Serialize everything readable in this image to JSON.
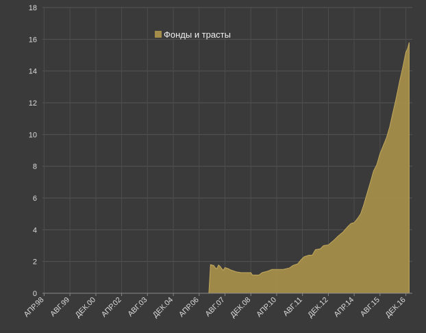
{
  "chart_data": {
    "type": "area",
    "ylim": [
      0,
      18
    ],
    "yticks": [
      0,
      2,
      4,
      6,
      8,
      10,
      12,
      14,
      16,
      18
    ],
    "xrange": [
      "1998-03-01",
      "2017-04-01"
    ],
    "xticks": [
      {
        "date": "1998-04-01",
        "label": "АПР.98"
      },
      {
        "date": "1999-08-01",
        "label": "АВГ.99"
      },
      {
        "date": "2000-12-01",
        "label": "ДЕК.00"
      },
      {
        "date": "2002-04-01",
        "label": "АПР.02"
      },
      {
        "date": "2003-08-01",
        "label": "АВГ.03"
      },
      {
        "date": "2004-12-01",
        "label": "ДЕК.04"
      },
      {
        "date": "2006-04-01",
        "label": "АПР.06"
      },
      {
        "date": "2007-08-01",
        "label": "АВГ.07"
      },
      {
        "date": "2008-12-01",
        "label": "ДЕК.08"
      },
      {
        "date": "2010-04-01",
        "label": "АПР.10"
      },
      {
        "date": "2011-08-01",
        "label": "АВГ.11"
      },
      {
        "date": "2012-12-01",
        "label": "ДЕК.12"
      },
      {
        "date": "2014-04-01",
        "label": "АПР.14"
      },
      {
        "date": "2015-08-01",
        "label": "АВГ.15"
      },
      {
        "date": "2016-12-01",
        "label": "ДЕК.16"
      }
    ],
    "grid": true,
    "legend_position": "top-left",
    "series": [
      {
        "name": "Фонды и трасты",
        "color": "#a48d4a",
        "points": [
          [
            "1998-03-01",
            0
          ],
          [
            "2006-10-01",
            0
          ],
          [
            "2006-11-01",
            1.8
          ],
          [
            "2007-01-01",
            1.75
          ],
          [
            "2007-02-01",
            1.6
          ],
          [
            "2007-03-01",
            1.55
          ],
          [
            "2007-04-01",
            1.78
          ],
          [
            "2007-05-01",
            1.7
          ],
          [
            "2007-06-01",
            1.55
          ],
          [
            "2007-07-01",
            1.45
          ],
          [
            "2007-08-01",
            1.62
          ],
          [
            "2007-10-01",
            1.55
          ],
          [
            "2007-12-01",
            1.45
          ],
          [
            "2008-03-01",
            1.35
          ],
          [
            "2008-06-01",
            1.3
          ],
          [
            "2008-09-01",
            1.3
          ],
          [
            "2008-12-01",
            1.3
          ],
          [
            "2009-01-01",
            1.15
          ],
          [
            "2009-05-01",
            1.15
          ],
          [
            "2009-07-01",
            1.3
          ],
          [
            "2009-10-01",
            1.38
          ],
          [
            "2010-01-01",
            1.5
          ],
          [
            "2010-04-01",
            1.5
          ],
          [
            "2010-08-01",
            1.5
          ],
          [
            "2010-12-01",
            1.6
          ],
          [
            "2011-02-01",
            1.75
          ],
          [
            "2011-05-01",
            1.85
          ],
          [
            "2011-07-01",
            2.1
          ],
          [
            "2011-09-01",
            2.3
          ],
          [
            "2011-12-01",
            2.4
          ],
          [
            "2012-02-01",
            2.4
          ],
          [
            "2012-04-01",
            2.75
          ],
          [
            "2012-07-01",
            2.8
          ],
          [
            "2012-09-01",
            3.0
          ],
          [
            "2012-12-01",
            3.05
          ],
          [
            "2013-03-01",
            3.3
          ],
          [
            "2013-06-01",
            3.6
          ],
          [
            "2013-09-01",
            3.85
          ],
          [
            "2013-12-01",
            4.2
          ],
          [
            "2014-02-01",
            4.4
          ],
          [
            "2014-04-01",
            4.45
          ],
          [
            "2014-06-01",
            4.7
          ],
          [
            "2014-08-01",
            5.0
          ],
          [
            "2014-10-01",
            5.6
          ],
          [
            "2014-12-01",
            6.3
          ],
          [
            "2015-02-01",
            7.0
          ],
          [
            "2015-04-01",
            7.7
          ],
          [
            "2015-06-01",
            8.1
          ],
          [
            "2015-08-01",
            8.8
          ],
          [
            "2015-10-01",
            9.3
          ],
          [
            "2015-12-01",
            9.8
          ],
          [
            "2016-02-01",
            10.5
          ],
          [
            "2016-04-01",
            11.4
          ],
          [
            "2016-06-01",
            12.3
          ],
          [
            "2016-08-01",
            13.3
          ],
          [
            "2016-10-01",
            14.2
          ],
          [
            "2016-12-01",
            15.2
          ],
          [
            "2017-01-01",
            15.4
          ],
          [
            "2017-02-01",
            15.8
          ]
        ]
      }
    ]
  }
}
